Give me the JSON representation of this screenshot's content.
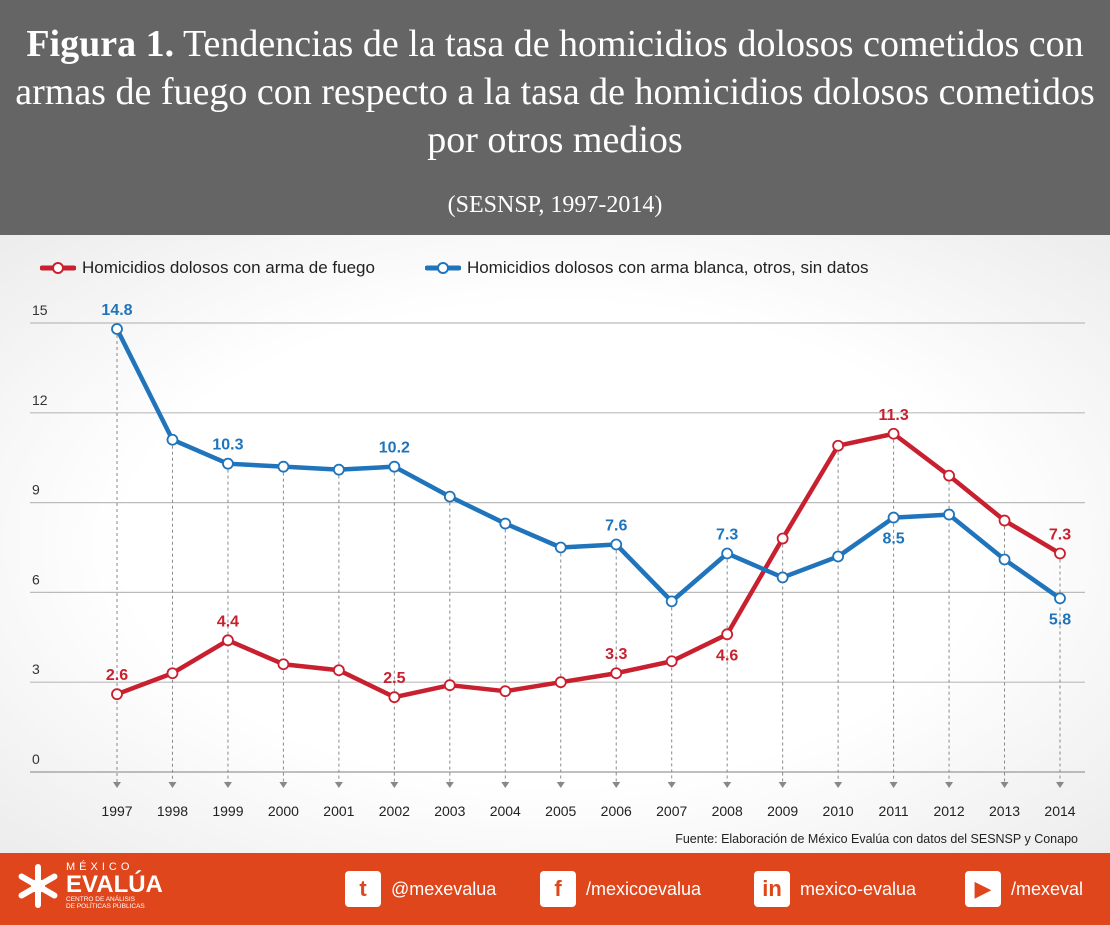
{
  "header": {
    "title_bold": "Figura 1.",
    "title_rest": "Tendencias de la tasa de homicidios dolosos cometidos con armas de fuego con respecto a la tasa de homicidios dolosos cometidos por otros medios",
    "subtitle": "(SESNSP, 1997-2014)"
  },
  "chart_data": {
    "type": "line",
    "title": "Tendencias de la tasa de homicidios dolosos cometidos con armas de fuego con respecto a la tasa de homicidios dolosos cometidos por otros medios",
    "x": [
      "1997",
      "1998",
      "1999",
      "2000",
      "2001",
      "2002",
      "2003",
      "2004",
      "2005",
      "2006",
      "2007",
      "2008",
      "2009",
      "2010",
      "2011",
      "2012",
      "2013",
      "2014"
    ],
    "ylim": [
      0,
      15
    ],
    "yticks": [
      "0",
      "3",
      "6",
      "9",
      "12",
      "15"
    ],
    "grid": true,
    "legend_position": "top",
    "series": [
      {
        "name": "Homicidios dolosos con arma de fuego",
        "color": "#c8202f",
        "values": [
          2.6,
          3.3,
          4.4,
          3.6,
          3.4,
          2.5,
          2.9,
          2.7,
          3.0,
          3.3,
          3.7,
          4.6,
          7.8,
          10.9,
          11.3,
          9.9,
          8.4,
          7.3
        ],
        "labels": [
          {
            "i": 0,
            "text": "2.6",
            "pos": "above"
          },
          {
            "i": 2,
            "text": "4.4",
            "pos": "above"
          },
          {
            "i": 5,
            "text": "2.5",
            "pos": "above"
          },
          {
            "i": 9,
            "text": "3.3",
            "pos": "above"
          },
          {
            "i": 11,
            "text": "4.6",
            "pos": "below"
          },
          {
            "i": 14,
            "text": "11.3",
            "pos": "above"
          },
          {
            "i": 17,
            "text": "7.3",
            "pos": "above"
          }
        ]
      },
      {
        "name": "Homicidios dolosos con arma blanca, otros, sin datos",
        "color": "#1f74bb",
        "values": [
          14.8,
          11.1,
          10.3,
          10.2,
          10.1,
          10.2,
          9.2,
          8.3,
          7.5,
          7.6,
          5.7,
          7.3,
          6.5,
          7.2,
          8.5,
          8.6,
          7.1,
          5.8
        ],
        "labels": [
          {
            "i": 0,
            "text": "14.8",
            "pos": "above"
          },
          {
            "i": 2,
            "text": "10.3",
            "pos": "above"
          },
          {
            "i": 5,
            "text": "10.2",
            "pos": "above"
          },
          {
            "i": 9,
            "text": "7.6",
            "pos": "above"
          },
          {
            "i": 11,
            "text": "7.3",
            "pos": "above"
          },
          {
            "i": 14,
            "text": "8.5",
            "pos": "below"
          },
          {
            "i": 17,
            "text": "5.8",
            "pos": "below"
          }
        ]
      }
    ],
    "source": "Fuente: Elaboración de México Evalúa con datos del SESNSP y Conapo"
  },
  "footer": {
    "logo_top": "MÉXICO",
    "logo_main": "EVALÚA",
    "logo_sub1": "CENTRO DE ANÁLISIS",
    "logo_sub2": "DE POLÍTICAS PÚBLICAS",
    "social": [
      {
        "icon": "twitter-icon",
        "glyph": "t",
        "label": "@mexevalua"
      },
      {
        "icon": "facebook-icon",
        "glyph": "f",
        "label": "/mexicoevalua"
      },
      {
        "icon": "linkedin-icon",
        "glyph": "in",
        "label": "mexico-evalua"
      },
      {
        "icon": "youtube-icon",
        "glyph": "▶",
        "label": "/mexeval"
      }
    ]
  }
}
